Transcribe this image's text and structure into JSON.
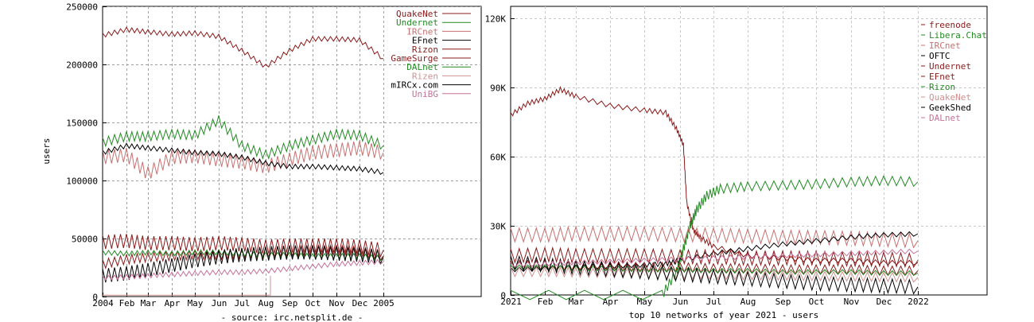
{
  "chart_data": [
    {
      "type": "line",
      "title": "",
      "ylabel": "users",
      "footer": "- source: irc.netsplit.de -",
      "ylim": [
        0,
        250000
      ],
      "y_ticks": [
        {
          "v": 0,
          "label": "0"
        },
        {
          "v": 50000,
          "label": "50000"
        },
        {
          "v": 100000,
          "label": "100000"
        },
        {
          "v": 150000,
          "label": "150000"
        },
        {
          "v": 200000,
          "label": "200000"
        },
        {
          "v": 250000,
          "label": "250000"
        }
      ],
      "x_ticks": [
        "2004",
        "Feb",
        "Mar",
        "Apr",
        "May",
        "Jun",
        "Jul",
        "Aug",
        "Sep",
        "Oct",
        "Nov",
        "Dec",
        "2005"
      ],
      "grid": true,
      "legend_position": "top-right",
      "legend_style": "label-left",
      "series": [
        {
          "name": "QuakeNet",
          "color": "#8b1a1a",
          "x": [
            0,
            1,
            2,
            3,
            4,
            5,
            6,
            7,
            8,
            9,
            10,
            11,
            12
          ],
          "values": [
            225000,
            230000,
            228000,
            226000,
            227000,
            224000,
            212000,
            198000,
            212000,
            222000,
            222000,
            221000,
            205000
          ]
        },
        {
          "name": "Undernet",
          "color": "#228b22",
          "x": [
            0,
            1,
            2,
            3,
            4,
            5,
            6,
            7,
            8,
            9,
            10,
            11,
            12
          ],
          "values": [
            133000,
            138000,
            138000,
            140000,
            139000,
            152000,
            130000,
            122000,
            130000,
            135000,
            140000,
            139000,
            130000
          ]
        },
        {
          "name": "IRCnet",
          "color": "#c87070",
          "x": [
            0,
            1,
            2,
            3,
            4,
            5,
            6,
            7,
            8,
            9,
            10,
            11,
            12
          ],
          "values": [
            120000,
            122000,
            106000,
            120000,
            121000,
            118000,
            116000,
            112000,
            118000,
            124000,
            126000,
            128000,
            124000
          ]
        },
        {
          "name": "EFnet",
          "color": "#000000",
          "x": [
            0,
            1,
            2,
            3,
            4,
            5,
            6,
            7,
            8,
            9,
            10,
            11,
            12
          ],
          "values": [
            124000,
            130000,
            128000,
            126000,
            124000,
            123000,
            120000,
            115000,
            112000,
            112000,
            111000,
            110000,
            107000
          ]
        },
        {
          "name": "Rizon",
          "color": "#8b1a1a",
          "x": [
            0,
            1,
            2,
            3,
            4,
            5,
            6,
            7,
            8,
            9,
            10,
            11,
            12
          ],
          "values": [
            28000,
            32000,
            34000,
            35000,
            36000,
            36000,
            37000,
            38000,
            39000,
            40000,
            40000,
            39000,
            35000
          ]
        },
        {
          "name": "GameSurge",
          "color": "#8b1a1a",
          "x": [
            0,
            1,
            2,
            3,
            4,
            5,
            6,
            7,
            8,
            9,
            10,
            11,
            12
          ],
          "values": [
            47000,
            48000,
            46000,
            46000,
            45000,
            46000,
            45000,
            43000,
            44000,
            44000,
            44000,
            43000,
            40000
          ]
        },
        {
          "name": "DALnet",
          "color": "#228b22",
          "x": [
            0,
            1,
            2,
            3,
            4,
            5,
            6,
            7,
            8,
            9,
            10,
            11,
            12
          ],
          "values": [
            38000,
            37000,
            38000,
            37000,
            38000,
            38000,
            37000,
            36000,
            36000,
            35000,
            35000,
            35000,
            33000
          ]
        },
        {
          "name": "Rizen",
          "color": "#d09090",
          "x": [
            0,
            7.2,
            7.2
          ],
          "values": [
            1200,
            1200,
            18000
          ]
        },
        {
          "name": "mIRCx.com",
          "color": "#000000",
          "x": [
            0,
            1,
            2,
            3,
            4,
            5,
            6,
            7,
            8,
            9,
            10,
            11,
            12
          ],
          "values": [
            18000,
            20000,
            23000,
            27000,
            31000,
            34000,
            36000,
            37000,
            38000,
            38000,
            37000,
            36000,
            34000
          ]
        },
        {
          "name": "UniBG",
          "color": "#c87098",
          "x": [
            0,
            1,
            2,
            3,
            4,
            5,
            6,
            7,
            8,
            9,
            10,
            11,
            12
          ],
          "values": [
            16000,
            17000,
            18000,
            19000,
            20000,
            21000,
            21000,
            22000,
            24000,
            26000,
            28000,
            29000,
            30000
          ]
        }
      ]
    },
    {
      "type": "line",
      "title": "top 10 networks of year 2021 - users",
      "ylim": [
        0,
        125000
      ],
      "y_ticks": [
        {
          "v": 0,
          "label": "0"
        },
        {
          "v": 30000,
          "label": "30K"
        },
        {
          "v": 60000,
          "label": "60K"
        },
        {
          "v": 90000,
          "label": "90K"
        },
        {
          "v": 120000,
          "label": "120K"
        }
      ],
      "x_ticks": [
        "2021",
        "Feb",
        "Mar",
        "Apr",
        "May",
        "Jun",
        "Jul",
        "Aug",
        "Sep",
        "Oct",
        "Nov",
        "Dec",
        "2022"
      ],
      "grid": true,
      "legend_position": "top-right",
      "legend_style": "label-right",
      "series": [
        {
          "name": "freenode",
          "color": "#8b1a1a",
          "x": [
            0,
            0.5,
            1,
            1.5,
            2,
            3,
            4,
            4.6,
            4.9,
            5.1,
            5.2,
            5.4,
            5.6,
            6,
            7,
            8,
            9,
            10,
            11,
            12
          ],
          "values": [
            78000,
            83000,
            85000,
            89000,
            86000,
            82000,
            80000,
            79000,
            72000,
            65000,
            40000,
            28000,
            25000,
            21000,
            17000,
            16000,
            15000,
            15000,
            14000,
            14000
          ]
        },
        {
          "name": "Libera.Chat",
          "color": "#228b22",
          "x": [
            0,
            4.5,
            4.9,
            5.1,
            5.3,
            5.5,
            5.8,
            6.2,
            7,
            8,
            9,
            10,
            11,
            12
          ],
          "values": [
            0,
            0,
            10000,
            20000,
            30000,
            37000,
            43000,
            46000,
            47000,
            47500,
            48000,
            49000,
            49500,
            49000
          ]
        },
        {
          "name": "IRCnet",
          "color": "#c87070",
          "x": [
            0,
            1,
            2,
            3,
            4,
            5,
            6,
            7,
            8,
            9,
            10,
            11,
            12
          ],
          "values": [
            26000,
            26000,
            26500,
            26500,
            26500,
            26000,
            26000,
            25500,
            25000,
            25000,
            24500,
            24000,
            23500
          ]
        },
        {
          "name": "OFTC",
          "color": "#000000",
          "x": [
            0,
            1,
            2,
            3,
            4,
            4.6,
            5,
            6,
            7,
            8,
            9,
            10,
            11,
            12
          ],
          "values": [
            11000,
            11500,
            12000,
            12500,
            13000,
            13500,
            15000,
            18000,
            20000,
            22000,
            23500,
            25000,
            26000,
            26500
          ]
        },
        {
          "name": "Undernet",
          "color": "#8b1a1a",
          "x": [
            0,
            1,
            2,
            3,
            4,
            5,
            6,
            7,
            8,
            9,
            10,
            11,
            12
          ],
          "values": [
            13000,
            13000,
            12500,
            12500,
            12000,
            12000,
            11500,
            11500,
            11000,
            11000,
            11000,
            10500,
            10500
          ]
        },
        {
          "name": "EFnet",
          "color": "#8b1a1a",
          "x": [
            0,
            1,
            2,
            3,
            4,
            5,
            6,
            7,
            8,
            9,
            10,
            11,
            12
          ],
          "values": [
            17000,
            17500,
            17000,
            17000,
            17000,
            16500,
            16500,
            16000,
            16000,
            16000,
            15500,
            15500,
            15000
          ]
        },
        {
          "name": "Rizon",
          "color": "#228b22",
          "x": [
            0,
            1,
            2,
            3,
            4,
            5,
            6,
            7,
            8,
            9,
            10,
            11,
            12
          ],
          "values": [
            12000,
            12000,
            11500,
            11500,
            11000,
            11000,
            10500,
            10500,
            10000,
            10000,
            10000,
            9500,
            9500
          ]
        },
        {
          "name": "QuakeNet",
          "color": "#d09090",
          "x": [
            0,
            1,
            2,
            3,
            4,
            5,
            6,
            7,
            8,
            9,
            10,
            11,
            12
          ],
          "values": [
            10000,
            10000,
            9800,
            9500,
            9300,
            9000,
            8800,
            8600,
            8400,
            8200,
            8000,
            7800,
            7600
          ]
        },
        {
          "name": "GeekShed",
          "color": "#000000",
          "x": [
            0,
            1,
            2,
            3,
            4,
            5,
            6,
            7,
            8,
            9,
            10,
            11,
            12
          ],
          "values": [
            14000,
            13000,
            12000,
            11000,
            10000,
            9000,
            8000,
            7000,
            6000,
            5000,
            4500,
            4000,
            3500
          ]
        },
        {
          "name": "DALnet",
          "color": "#c87098",
          "x": [
            0,
            1,
            2,
            3,
            4,
            5,
            6,
            7,
            8,
            9,
            10,
            11,
            12
          ],
          "values": [
            13000,
            13500,
            14000,
            14500,
            15000,
            15500,
            16000,
            16500,
            17000,
            17500,
            18000,
            18500,
            19000
          ]
        }
      ]
    }
  ]
}
